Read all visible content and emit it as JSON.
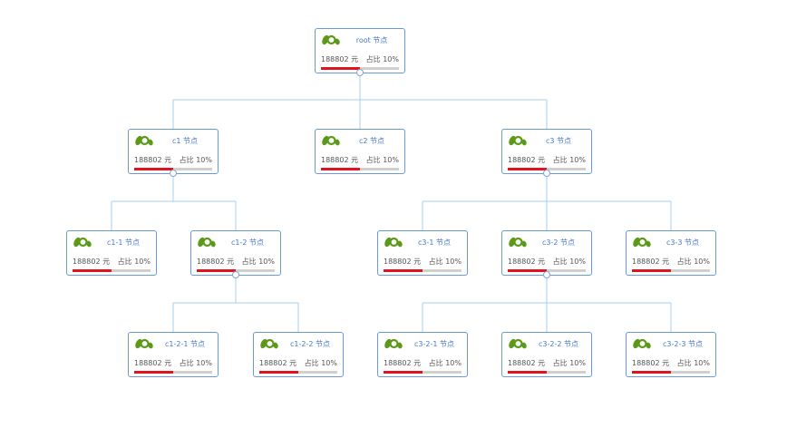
{
  "colors": {
    "border": "#6699dd",
    "title": "#4a78c8",
    "bar_fill": "#e0141e",
    "bar_track": "#cfcfcf",
    "edge": "#a9cfee"
  },
  "tree": {
    "root": {
      "title": "root 节点",
      "amount": "188802 元",
      "ratio": "占比 10%",
      "progress": 0.5
    },
    "c1": {
      "title": "c1 节点",
      "amount": "188802 元",
      "ratio": "占比 10%",
      "progress": 0.5
    },
    "c2": {
      "title": "c2 节点",
      "amount": "188802 元",
      "ratio": "占比 10%",
      "progress": 0.5
    },
    "c3": {
      "title": "c3 节点",
      "amount": "188802 元",
      "ratio": "占比 10%",
      "progress": 0.5
    },
    "c1_1": {
      "title": "c1-1 节点",
      "amount": "188802 元",
      "ratio": "占比 10%",
      "progress": 0.5
    },
    "c1_2": {
      "title": "c1-2 节点",
      "amount": "188802 元",
      "ratio": "占比 10%",
      "progress": 0.5
    },
    "c3_1": {
      "title": "c3-1 节点",
      "amount": "188802 元",
      "ratio": "占比 10%",
      "progress": 0.5
    },
    "c3_2": {
      "title": "c3-2 节点",
      "amount": "188802 元",
      "ratio": "占比 10%",
      "progress": 0.5
    },
    "c3_3": {
      "title": "c3-3 节点",
      "amount": "188802 元",
      "ratio": "占比 10%",
      "progress": 0.5
    },
    "c1_2_1": {
      "title": "c1-2-1 节点",
      "amount": "188802 元",
      "ratio": "占比 10%",
      "progress": 0.5
    },
    "c1_2_2": {
      "title": "c1-2-2 节点",
      "amount": "188802 元",
      "ratio": "占比 10%",
      "progress": 0.5
    },
    "c3_2_1": {
      "title": "c3-2-1 节点",
      "amount": "188802 元",
      "ratio": "占比 10%",
      "progress": 0.5
    },
    "c3_2_2": {
      "title": "c3-2-2 节点",
      "amount": "188802 元",
      "ratio": "占比 10%",
      "progress": 0.5
    },
    "c3_2_3": {
      "title": "c3-2-3 节点",
      "amount": "188802 元",
      "ratio": "占比 10%",
      "progress": 0.5
    }
  }
}
